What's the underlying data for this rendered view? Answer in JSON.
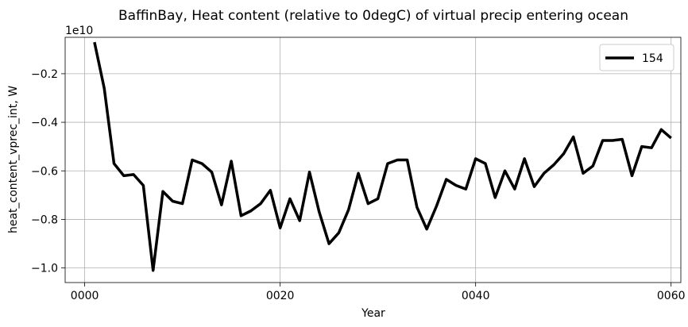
{
  "chart_data": {
    "type": "line",
    "title": "BaffinBay, Heat content (relative to 0degC) of virtual precip entering ocean",
    "xlabel": "Year",
    "ylabel": "heat_content_vprec_int, W",
    "y_offset_label": "1e10",
    "xlim": [
      -2,
      61
    ],
    "ylim": [
      -1.06,
      -0.05
    ],
    "y_scale_exponent": 10,
    "grid": true,
    "legend_position": "top-right",
    "x_ticks": [
      {
        "value": 0,
        "label": "0000"
      },
      {
        "value": 20,
        "label": "0020"
      },
      {
        "value": 40,
        "label": "0040"
      },
      {
        "value": 60,
        "label": "0060"
      }
    ],
    "y_ticks": [
      {
        "value": -1.0,
        "label": "−1.0"
      },
      {
        "value": -0.8,
        "label": "−0.8"
      },
      {
        "value": -0.6,
        "label": "−0.6"
      },
      {
        "value": -0.4,
        "label": "−0.4"
      },
      {
        "value": -0.2,
        "label": "−0.2"
      }
    ],
    "series": [
      {
        "name": "154",
        "color": "#000000",
        "x": [
          1,
          2,
          3,
          4,
          5,
          6,
          7,
          8,
          9,
          10,
          11,
          12,
          13,
          14,
          15,
          16,
          17,
          18,
          19,
          20,
          21,
          22,
          23,
          24,
          25,
          26,
          27,
          28,
          29,
          30,
          31,
          32,
          33,
          34,
          35,
          36,
          37,
          38,
          39,
          40,
          41,
          42,
          43,
          44,
          45,
          46,
          47,
          48,
          49,
          50,
          51,
          52,
          53,
          54,
          55,
          56,
          57,
          58,
          59,
          60
        ],
        "values": [
          -0.07,
          -0.26,
          -0.57,
          -0.62,
          -0.615,
          -0.66,
          -1.01,
          -0.685,
          -0.725,
          -0.735,
          -0.555,
          -0.57,
          -0.605,
          -0.74,
          -0.56,
          -0.785,
          -0.765,
          -0.735,
          -0.68,
          -0.835,
          -0.715,
          -0.805,
          -0.605,
          -0.77,
          -0.9,
          -0.855,
          -0.76,
          -0.61,
          -0.735,
          -0.715,
          -0.57,
          -0.555,
          -0.555,
          -0.75,
          -0.84,
          -0.745,
          -0.635,
          -0.66,
          -0.675,
          -0.55,
          -0.57,
          -0.71,
          -0.6,
          -0.675,
          -0.55,
          -0.665,
          -0.61,
          -0.575,
          -0.53,
          -0.46,
          -0.61,
          -0.58,
          -0.475,
          -0.475,
          -0.47,
          -0.62,
          -0.5,
          -0.505,
          -0.43,
          -0.465
        ]
      }
    ]
  }
}
